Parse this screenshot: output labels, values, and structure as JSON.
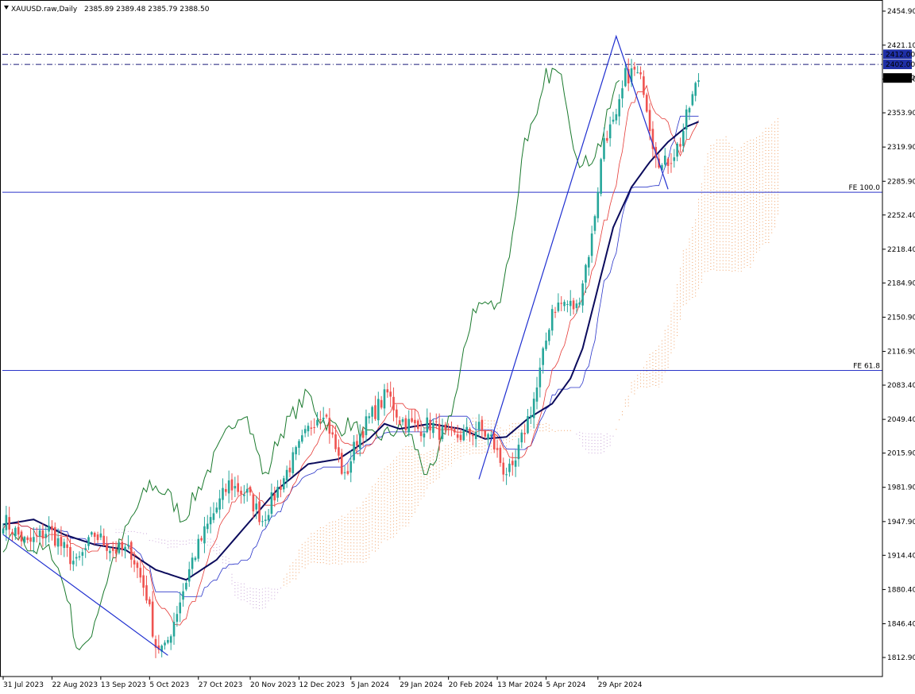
{
  "header": {
    "symbol_text": "XAUUSD.raw,Daily",
    "ohlc_text": "2385.89 2389.48 2385.79 2388.50"
  },
  "colors": {
    "bull_candle": "#26a69a",
    "bear_candle": "#ef5350",
    "tenkan": "#e53935",
    "kijun": "#2a35c9",
    "chikou": "#1b7a2e",
    "sma": "#0b0b5c",
    "cloud_bull": "#f0a36a",
    "cloud_bear": "#c9a6d8",
    "fe_line": "#2a35c9",
    "dash_line": "#1a1a7a",
    "price_tag_bg": "#1f2fa6",
    "last_tag_bg": "#000000"
  },
  "chart_data": {
    "type": "candlestick",
    "ylim": [
      1795,
      2470
    ],
    "y_ticks": [
      "2454.90",
      "2421.10",
      "2387.30",
      "2353.90",
      "2319.90",
      "2285.90",
      "2252.40",
      "2218.40",
      "2184.90",
      "2150.90",
      "2116.90",
      "2083.40",
      "2049.40",
      "2015.90",
      "1981.90",
      "1947.90",
      "1914.40",
      "1880.40",
      "1846.40",
      "1812.90"
    ],
    "x_ticks": [
      "31 Jul 2023",
      "22 Aug 2023",
      "13 Sep 2023",
      "5 Oct 2023",
      "27 Oct 2023",
      "20 Nov 2023",
      "12 Dec 2023",
      "5 Jan 2024",
      "29 Jan 2024",
      "20 Feb 2024",
      "13 Mar 2024",
      "5 Apr 2024",
      "29 Apr 2024"
    ],
    "price_lines": [
      {
        "label": "2412.00",
        "value": 2412.0,
        "style": "dashdot"
      },
      {
        "label": "2402.00",
        "value": 2402.0,
        "style": "dashdot"
      }
    ],
    "last_price": {
      "label": "2388.50",
      "value": 2388.5
    },
    "fe_levels": [
      {
        "label": "FE 100.0",
        "value": 2275.0
      },
      {
        "label": "FE 61.8",
        "value": 2098.0
      }
    ],
    "price_anchors": [
      [
        0,
        1950
      ],
      [
        8,
        1925
      ],
      [
        15,
        1940
      ],
      [
        20,
        1920
      ],
      [
        24,
        1905
      ],
      [
        30,
        1935
      ],
      [
        36,
        1920
      ],
      [
        42,
        1918
      ],
      [
        47,
        1875
      ],
      [
        50,
        1825
      ],
      [
        53,
        1820
      ],
      [
        57,
        1860
      ],
      [
        62,
        1910
      ],
      [
        68,
        1950
      ],
      [
        74,
        1985
      ],
      [
        80,
        1975
      ],
      [
        85,
        1950
      ],
      [
        90,
        1980
      ],
      [
        96,
        2015
      ],
      [
        102,
        2050
      ],
      [
        105,
        2060
      ],
      [
        108,
        2030
      ],
      [
        112,
        1990
      ],
      [
        116,
        2030
      ],
      [
        120,
        2050
      ],
      [
        126,
        2075
      ],
      [
        130,
        2050
      ],
      [
        136,
        2040
      ],
      [
        140,
        2045
      ],
      [
        146,
        2030
      ],
      [
        152,
        2035
      ],
      [
        156,
        2040
      ],
      [
        160,
        2030
      ],
      [
        164,
        2000
      ],
      [
        167,
        1995
      ],
      [
        171,
        2040
      ],
      [
        175,
        2080
      ],
      [
        180,
        2160
      ],
      [
        184,
        2165
      ],
      [
        188,
        2160
      ],
      [
        193,
        2230
      ],
      [
        197,
        2330
      ],
      [
        201,
        2345
      ],
      [
        204,
        2390
      ],
      [
        207,
        2395
      ],
      [
        210,
        2380
      ],
      [
        213,
        2325
      ],
      [
        216,
        2300
      ],
      [
        219,
        2310
      ],
      [
        222,
        2325
      ],
      [
        225,
        2360
      ],
      [
        228,
        2388
      ]
    ],
    "sma_anchors": [
      [
        0,
        1945
      ],
      [
        10,
        1950
      ],
      [
        20,
        1935
      ],
      [
        30,
        1925
      ],
      [
        40,
        1920
      ],
      [
        50,
        1900
      ],
      [
        60,
        1890
      ],
      [
        70,
        1910
      ],
      [
        80,
        1945
      ],
      [
        90,
        1980
      ],
      [
        100,
        2005
      ],
      [
        110,
        2010
      ],
      [
        120,
        2030
      ],
      [
        125,
        2045
      ],
      [
        130,
        2040
      ],
      [
        140,
        2045
      ],
      [
        150,
        2040
      ],
      [
        158,
        2030
      ],
      [
        165,
        2032
      ],
      [
        172,
        2050
      ],
      [
        180,
        2065
      ],
      [
        186,
        2090
      ],
      [
        190,
        2120
      ],
      [
        195,
        2180
      ],
      [
        200,
        2240
      ],
      [
        206,
        2280
      ],
      [
        212,
        2305
      ],
      [
        218,
        2325
      ],
      [
        224,
        2340
      ],
      [
        228,
        2345
      ]
    ],
    "zigzag_lines": [
      {
        "points": [
          [
            0,
            1935
          ],
          [
            54,
            1815
          ]
        ]
      },
      {
        "points": [
          [
            156,
            1990
          ],
          [
            201,
            2430
          ],
          [
            218,
            2278
          ]
        ]
      }
    ]
  }
}
